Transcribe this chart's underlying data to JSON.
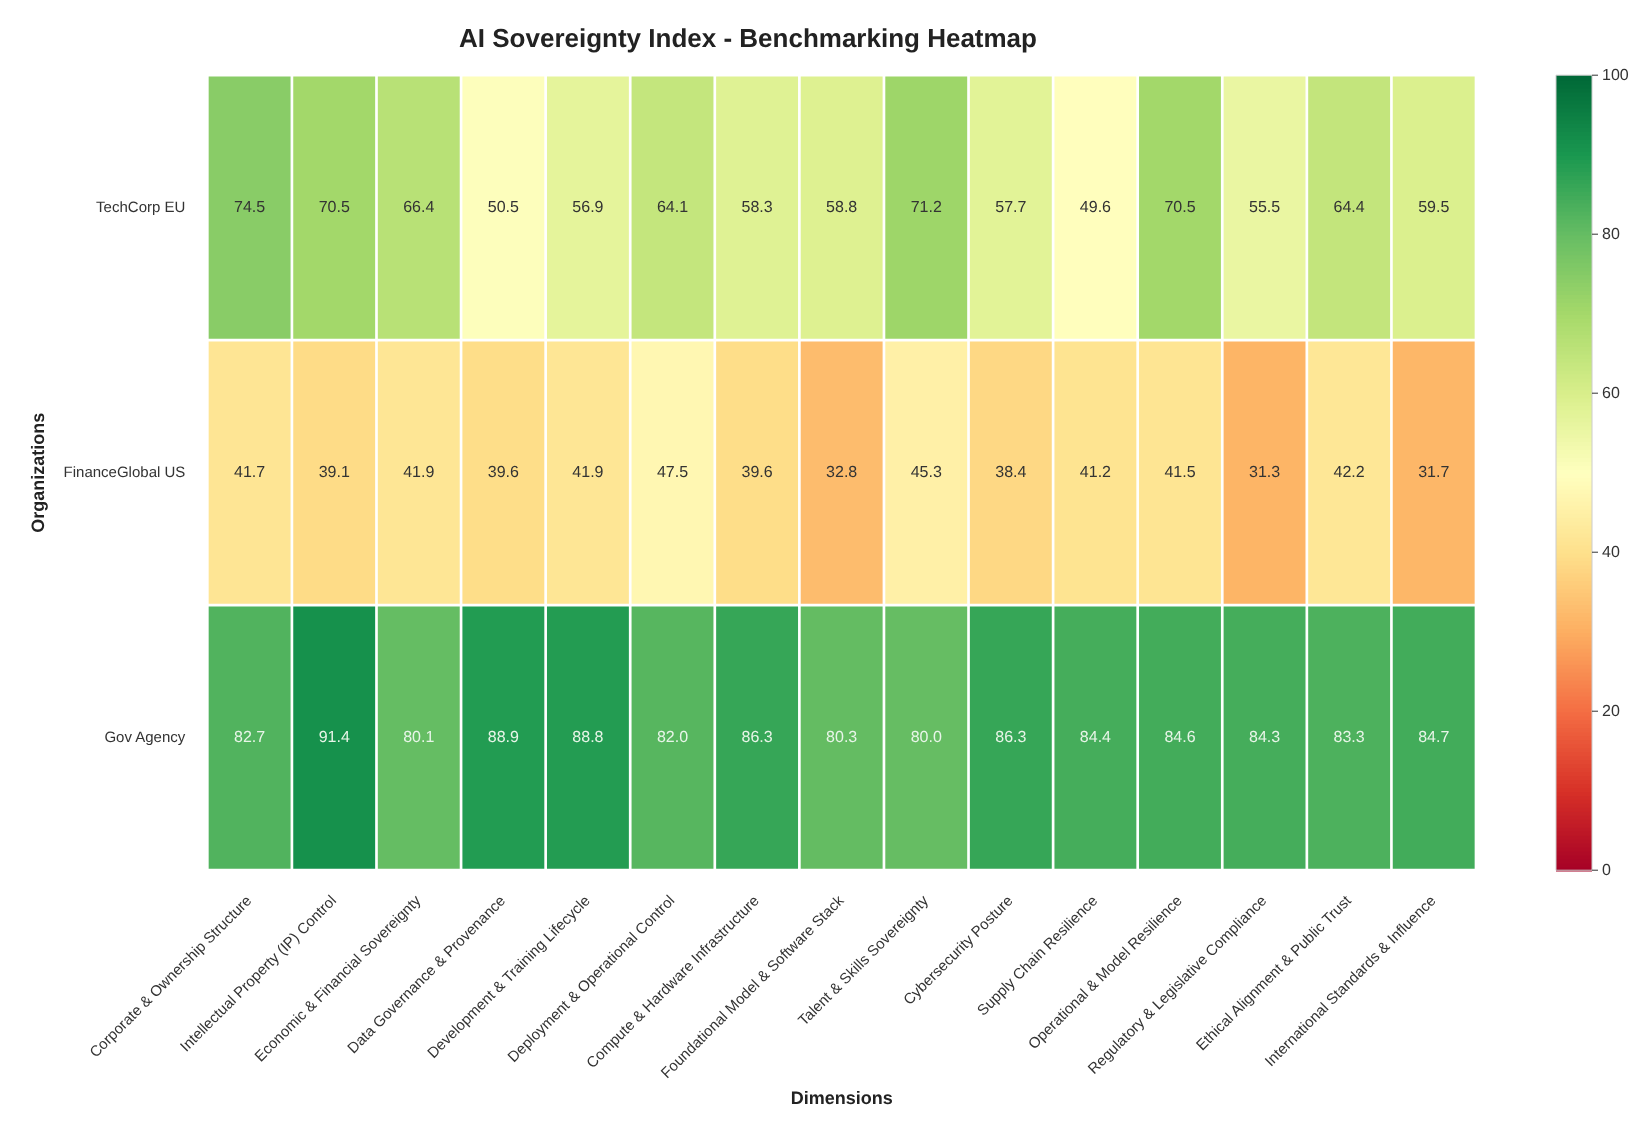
{
  "chart_data": {
    "type": "heatmap",
    "title": "AI Sovereignty Index - Benchmarking Heatmap",
    "xlabel": "Dimensions",
    "ylabel": "Organizations",
    "categories": [
      "Corporate & Ownership Structure",
      "Intellectual Property (IP) Control",
      "Economic & Financial Sovereignty",
      "Data Governance & Provenance",
      "Development & Training Lifecycle",
      "Deployment & Operational Control",
      "Compute & Hardware Infrastructure",
      "Foundational Model & Software Stack",
      "Talent & Skills Sovereignty",
      "Cybersecurity Posture",
      "Supply Chain Resilience",
      "Operational & Model Resilience",
      "Regulatory & Legislative Compliance",
      "Ethical Alignment & Public Trust",
      "International Standards & Influence"
    ],
    "y_categories": [
      "TechCorp EU",
      "FinanceGlobal US",
      "Gov Agency"
    ],
    "cells": [
      [
        74.5,
        70.5,
        66.4,
        50.5,
        56.9,
        64.1,
        58.3,
        58.8,
        71.2,
        57.7,
        49.6,
        70.5,
        55.5,
        64.4,
        59.5
      ],
      [
        41.7,
        39.1,
        41.9,
        39.6,
        41.9,
        47.5,
        39.6,
        32.8,
        45.3,
        38.4,
        41.2,
        41.5,
        31.3,
        42.2,
        31.7
      ],
      [
        82.7,
        91.4,
        80.1,
        88.9,
        88.8,
        82.0,
        86.3,
        80.3,
        80.0,
        86.3,
        84.4,
        84.6,
        84.3,
        83.3,
        84.7
      ]
    ],
    "cell_labels": [
      [
        "74.5",
        "70.5",
        "66.4",
        "50.5",
        "56.9",
        "64.1",
        "58.3",
        "58.8",
        "71.2",
        "57.7",
        "49.6",
        "70.5",
        "55.5",
        "64.4",
        "59.5"
      ],
      [
        "41.7",
        "39.1",
        "41.9",
        "39.6",
        "41.9",
        "47.5",
        "39.6",
        "32.8",
        "45.3",
        "38.4",
        "41.2",
        "41.5",
        "31.3",
        "42.2",
        "31.7"
      ],
      [
        "82.7",
        "91.4",
        "80.1",
        "88.9",
        "88.8",
        "82.0",
        "86.3",
        "80.3",
        "80.0",
        "86.3",
        "84.4",
        "84.6",
        "84.3",
        "83.3",
        "84.7"
      ]
    ],
    "clim": [
      0,
      100
    ],
    "cticks": [
      0,
      20,
      40,
      60,
      80,
      100
    ],
    "data_labels": true
  }
}
